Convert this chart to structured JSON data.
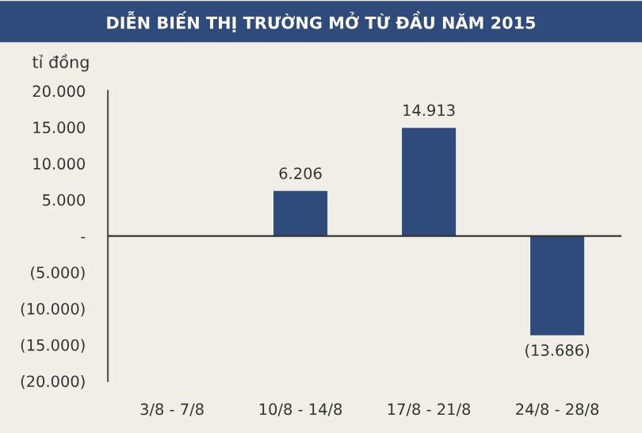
{
  "chart_data": {
    "type": "bar",
    "title": "DIỄN BIẾN THỊ TRƯỜNG MỞ TỪ ĐẦU NĂM 2015",
    "ylabel": "tỉ đồng",
    "categories": [
      "3/8 - 7/8",
      "10/8 - 14/8",
      "17/8 - 21/8",
      "24/8 - 28/8"
    ],
    "values": [
      null,
      6206,
      14913,
      -13686
    ],
    "value_labels": [
      null,
      "6.206",
      "14.913",
      "(13.686)"
    ],
    "color": "#2f4b7c",
    "ylim": [
      -20000,
      20000
    ],
    "yticks": [
      {
        "value": 20000,
        "label": "20.000"
      },
      {
        "value": 15000,
        "label": "15.000"
      },
      {
        "value": 10000,
        "label": "10.000"
      },
      {
        "value": 5000,
        "label": "5.000"
      },
      {
        "value": 0,
        "label": "-"
      },
      {
        "value": -5000,
        "label": "(5.000)"
      },
      {
        "value": -10000,
        "label": "(10.000)"
      },
      {
        "value": -15000,
        "label": "(15.000)"
      },
      {
        "value": -20000,
        "label": "(20.000)"
      }
    ],
    "ref_lines": [
      {
        "axis": "y",
        "value": 0,
        "color": "#333333"
      }
    ],
    "grid": false,
    "legend": false
  }
}
